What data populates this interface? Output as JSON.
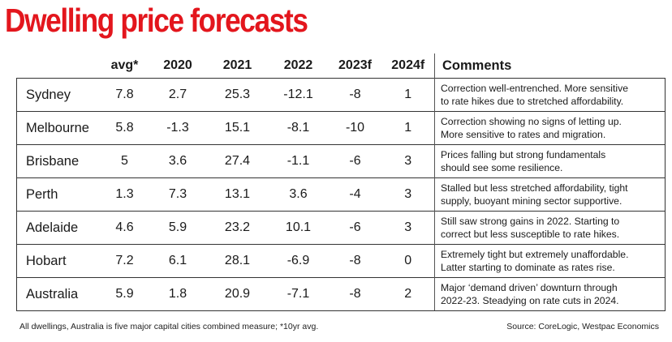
{
  "title": "Dwelling price forecasts",
  "headers": [
    "avg*",
    "2020",
    "2021",
    "2022",
    "2023f",
    "2024f",
    "Comments"
  ],
  "rows": [
    {
      "city": "Sydney",
      "avg": "7.8",
      "y2020": "2.7",
      "y2021": "25.3",
      "y2022": "-12.1",
      "y2023f": "-8",
      "y2024f": "1",
      "comment_line1": "Correction well-entrenched. More sensitive",
      "comment_line2": "to rate hikes due to stretched affordability."
    },
    {
      "city": "Melbourne",
      "avg": "5.8",
      "y2020": "-1.3",
      "y2021": "15.1",
      "y2022": "-8.1",
      "y2023f": "-10",
      "y2024f": "1",
      "comment_line1": "Correction showing no signs of letting up.",
      "comment_line2": "More sensitive to rates and migration."
    },
    {
      "city": "Brisbane",
      "avg": "5",
      "y2020": "3.6",
      "y2021": "27.4",
      "y2022": "-1.1",
      "y2023f": "-6",
      "y2024f": "3",
      "comment_line1": "Prices falling but strong fundamentals",
      "comment_line2": "should see some resilience."
    },
    {
      "city": "Perth",
      "avg": "1.3",
      "y2020": "7.3",
      "y2021": "13.1",
      "y2022": "3.6",
      "y2023f": "-4",
      "y2024f": "3",
      "comment_line1": "Stalled but less stretched affordability, tight",
      "comment_line2": "supply, buoyant mining sector supportive."
    },
    {
      "city": "Adelaide",
      "avg": "4.6",
      "y2020": "5.9",
      "y2021": "23.2",
      "y2022": "10.1",
      "y2023f": "-6",
      "y2024f": "3",
      "comment_line1": "Still saw strong gains in 2022. Starting to",
      "comment_line2": "correct but less susceptible to rate hikes."
    },
    {
      "city": "Hobart",
      "avg": "7.2",
      "y2020": "6.1",
      "y2021": "28.1",
      "y2022": "-6.9",
      "y2023f": "-8",
      "y2024f": "0",
      "comment_line1": "Extremely tight but extremely unaffordable.",
      "comment_line2": "Latter starting to dominate as rates rise."
    },
    {
      "city": "Australia",
      "avg": "5.9",
      "y2020": "1.8",
      "y2021": "20.9",
      "y2022": "-7.1",
      "y2023f": "-8",
      "y2024f": "2",
      "comment_line1": "Major ‘demand driven’ downturn through",
      "comment_line2": "2022-23. Steadying on rate cuts in 2024."
    }
  ],
  "footnote": "All dwellings, Australia is five major capital cities combined measure; *10yr avg.",
  "source": "Source: CoreLogic, Westpac Economics",
  "colors": {
    "title": "#e3161d"
  }
}
